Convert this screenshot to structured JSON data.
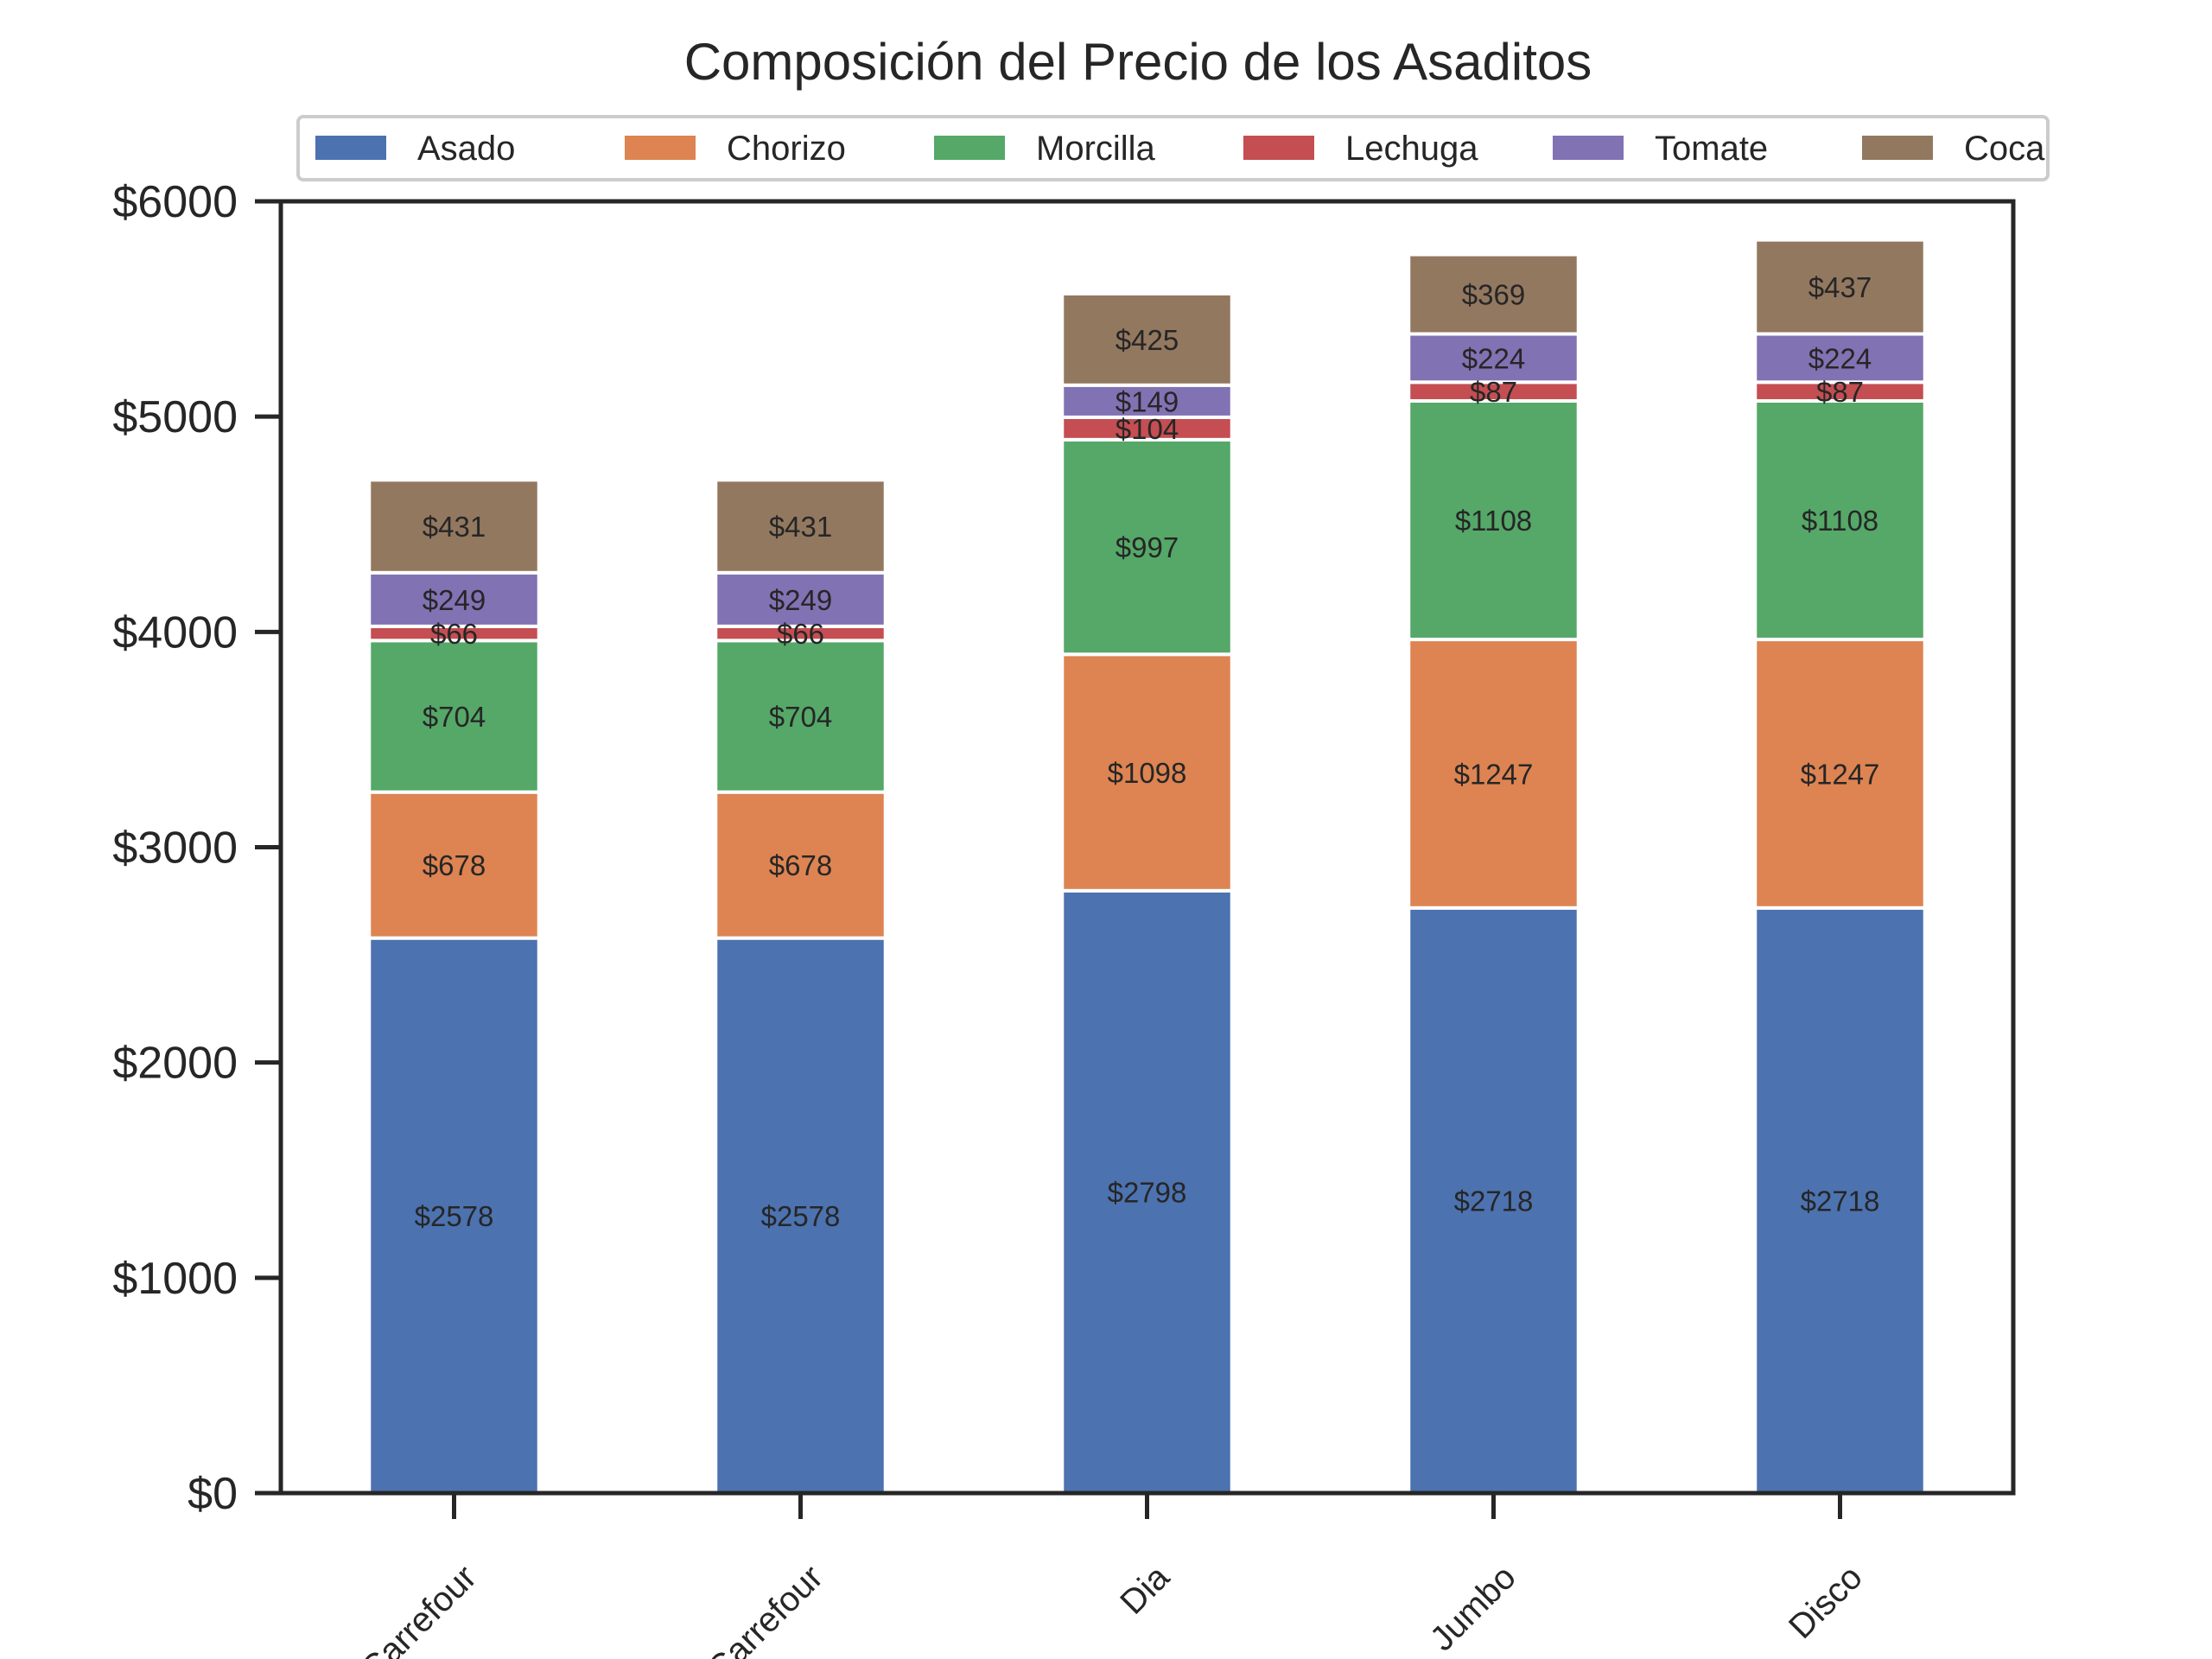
{
  "chart_data": {
    "type": "bar",
    "stacked": true,
    "title": "Composición del Precio de los Asaditos",
    "xlabel": "",
    "ylabel": "",
    "categories": [
      "Carrefour",
      "Carrefour",
      "Dia",
      "Jumbo",
      "Disco"
    ],
    "series": [
      {
        "name": "Asado",
        "color": "#4c72b0",
        "values": [
          2578,
          2578,
          2798,
          2718,
          2718
        ]
      },
      {
        "name": "Chorizo",
        "color": "#dd8452",
        "values": [
          678,
          678,
          1098,
          1247,
          1247
        ]
      },
      {
        "name": "Morcilla",
        "color": "#55a868",
        "values": [
          704,
          704,
          997,
          1108,
          1108
        ]
      },
      {
        "name": "Lechuga",
        "color": "#c44e52",
        "values": [
          66,
          66,
          104,
          87,
          87
        ]
      },
      {
        "name": "Tomate",
        "color": "#8172b3",
        "values": [
          249,
          249,
          149,
          224,
          224
        ]
      },
      {
        "name": "Coca",
        "color": "#937860",
        "values": [
          431,
          431,
          425,
          369,
          437
        ]
      }
    ],
    "ylim": [
      0,
      6000
    ],
    "yticks": [
      0,
      1000,
      2000,
      3000,
      4000,
      5000,
      6000
    ],
    "ytick_labels": [
      "$0",
      "$1000",
      "$2000",
      "$3000",
      "$4000",
      "$5000",
      "$6000"
    ],
    "value_prefix": "$",
    "grid": false,
    "legend_position": "top",
    "xtick_rotation": 45
  }
}
